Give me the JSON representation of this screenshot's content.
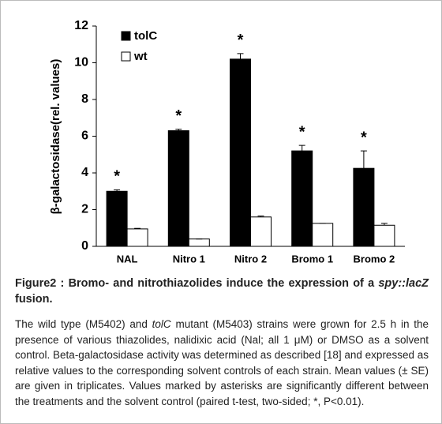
{
  "chart_data": {
    "type": "bar",
    "y_label": "β-galactosidase(rel. values)",
    "categories": [
      "NAL",
      "Nitro 1",
      "Nitro 2",
      "Bromo 1",
      "Bromo 2"
    ],
    "series": [
      {
        "name": "tolC",
        "color": "#000000",
        "values": [
          3.0,
          6.3,
          10.2,
          5.2,
          4.25
        ],
        "errors": [
          0.08,
          0.08,
          0.3,
          0.3,
          0.95
        ],
        "markers": [
          "*",
          "*",
          "*",
          "*",
          "*"
        ]
      },
      {
        "name": "wt",
        "color": "#ffffff",
        "values": [
          0.95,
          0.4,
          1.6,
          1.25,
          1.15
        ],
        "errors": [
          0.03,
          0,
          0.05,
          0,
          0.1
        ]
      }
    ],
    "ylim": [
      0,
      12
    ],
    "yticks": [
      0,
      2,
      4,
      6,
      8,
      10,
      12
    ],
    "grid": false,
    "legend": "top-left"
  },
  "caption": {
    "title": [
      "Figure2 : Bromo- and nitrothiazolides induce the expression of a ",
      "spy::lacZ",
      " fusion."
    ],
    "body": [
      "The wild type (M5402) and ",
      "tolC",
      " mutant (M5403) strains were grown for 2.5 h in the presence of various thiazolides, nalidixic acid (Nal; all 1 μM) or DMSO as a solvent control. Beta-galactosidase activity was determined as described [18] and expressed as relative values to the corresponding solvent controls of each strain. Mean values (± SE) are given in triplicates. Values marked by asterisks are significantly different between the treatments and the solvent control (paired t-test, two-sided; *, P<0.01)."
    ]
  }
}
